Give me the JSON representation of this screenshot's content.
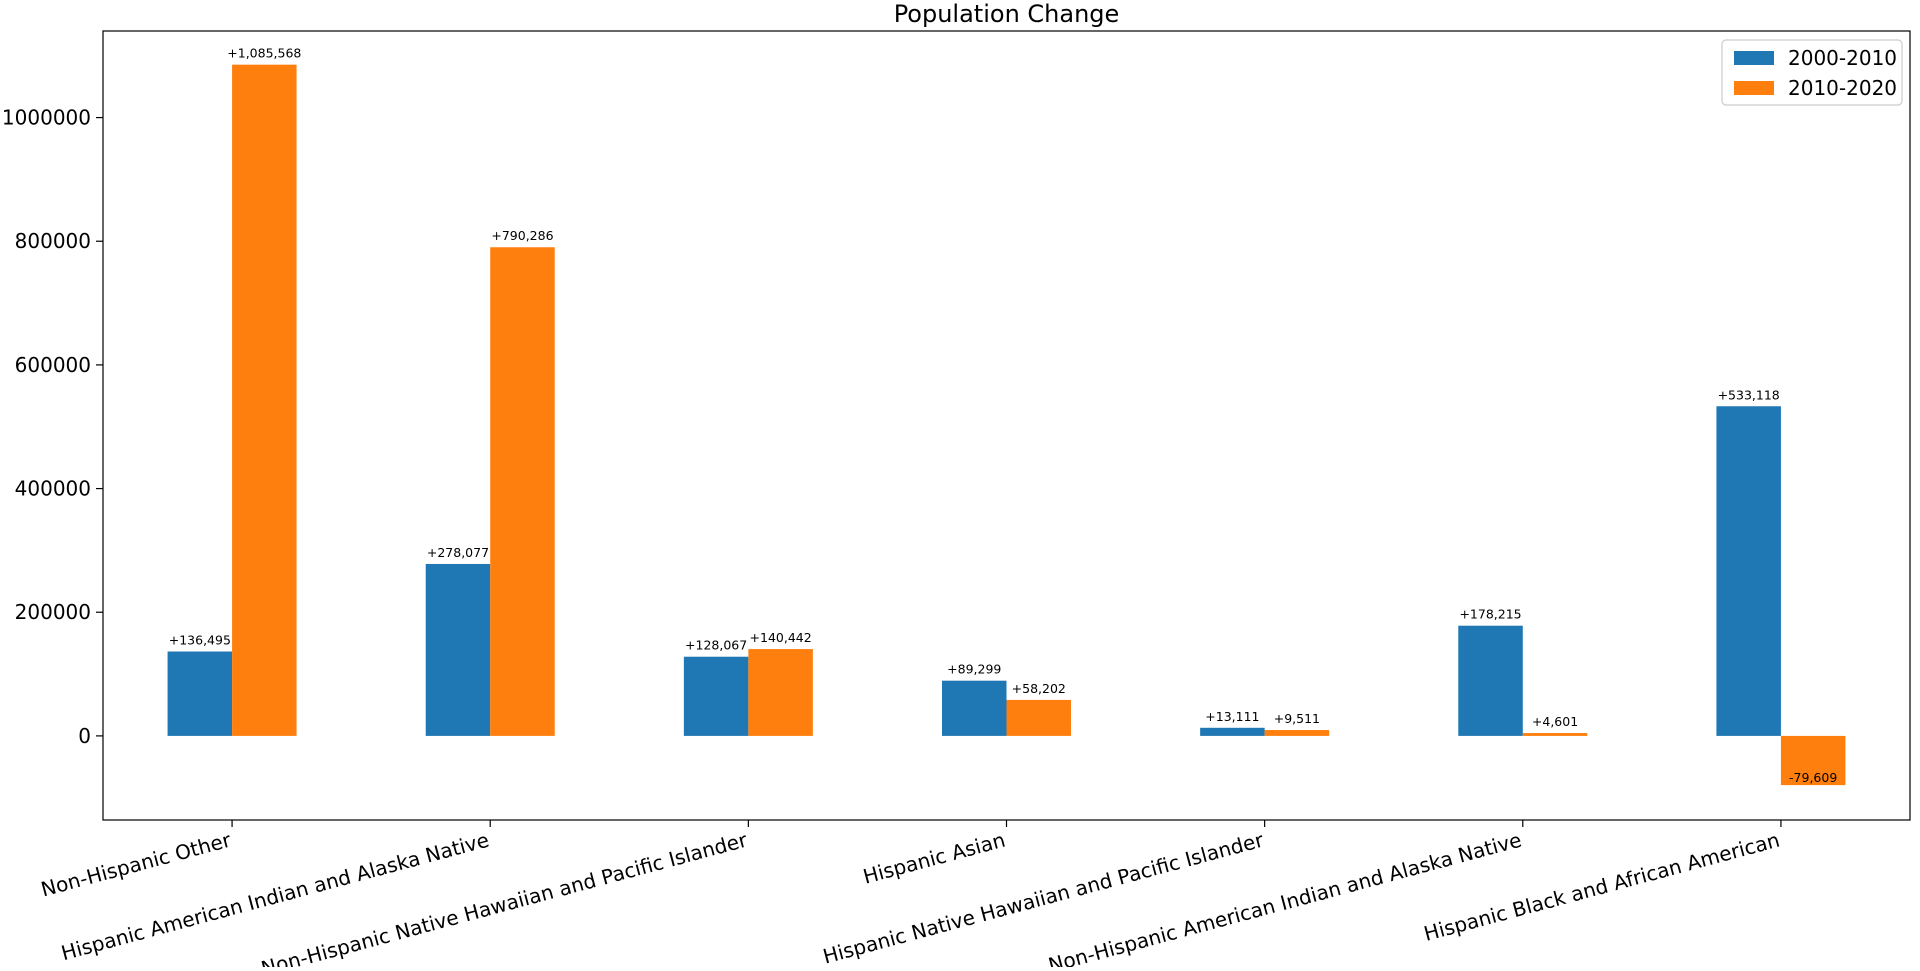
{
  "chart_data": {
    "type": "bar",
    "title": "Population Change",
    "xlabel": "",
    "ylabel": "",
    "categories": [
      "Non-Hispanic Other",
      "Hispanic American Indian and Alaska Native",
      "Non-Hispanic Native Hawaiian and Pacific Islander",
      "Hispanic Asian",
      "Hispanic Native Hawaiian and Pacific Islander",
      "Non-Hispanic American Indian and Alaska Native",
      "Hispanic Black and African American"
    ],
    "series": [
      {
        "name": "2000-2010",
        "color": "#1f77b4",
        "values": [
          136495,
          278077,
          128067,
          89299,
          13111,
          178215,
          533118
        ],
        "labels": [
          "+136,495",
          "+278,077",
          "+128,067",
          "+89,299",
          "+13,111",
          "+178,215",
          "+533,118"
        ]
      },
      {
        "name": "2010-2020",
        "color": "#ff7f0e",
        "values": [
          1085568,
          790286,
          140442,
          58202,
          9511,
          4601,
          -79609
        ],
        "labels": [
          "+1,085,568",
          "+790,286",
          "+140,442",
          "+58,202",
          "+9,511",
          "+4,601",
          "-79,609"
        ]
      }
    ],
    "ylim": [
      -136000,
      1140000
    ],
    "yticks": [
      0,
      200000,
      400000,
      600000,
      800000,
      1000000
    ],
    "ytick_labels": [
      "0",
      "200000",
      "400000",
      "600000",
      "800000",
      "1000000"
    ],
    "legend_position": "top-right",
    "grid": false
  }
}
